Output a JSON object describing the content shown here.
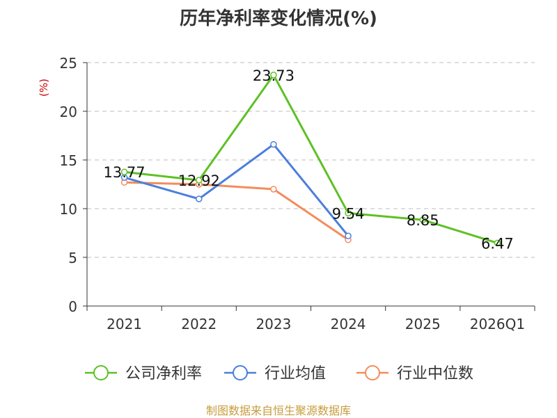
{
  "chart_data": {
    "type": "line",
    "title": "历年净利率变化情况(%)",
    "ylabel": "(%)",
    "ylim": [
      0,
      25
    ],
    "yticks": [
      0,
      5,
      10,
      15,
      20,
      25
    ],
    "categories": [
      "2021",
      "2022",
      "2023",
      "2024",
      "2025",
      "2026Q1"
    ],
    "grid": true,
    "legend_position": "bottom",
    "series": [
      {
        "name": "公司净利率",
        "color": "#5dc124",
        "values": [
          13.77,
          12.92,
          23.73,
          9.54,
          8.85,
          6.47
        ],
        "labels": [
          "13.77",
          "12.92",
          "23.73",
          "9.54",
          "8.85",
          "6.47"
        ]
      },
      {
        "name": "行业均值",
        "color": "#4a7fdc",
        "values": [
          13.2,
          11.0,
          16.6,
          7.2,
          null,
          null
        ]
      },
      {
        "name": "行业中位数",
        "color": "#f48c5b",
        "values": [
          12.7,
          12.5,
          12.0,
          6.8,
          null,
          null
        ]
      }
    ]
  },
  "ylabel_color": "#cc0000",
  "source_note": "制图数据来自恒生聚源数据库"
}
